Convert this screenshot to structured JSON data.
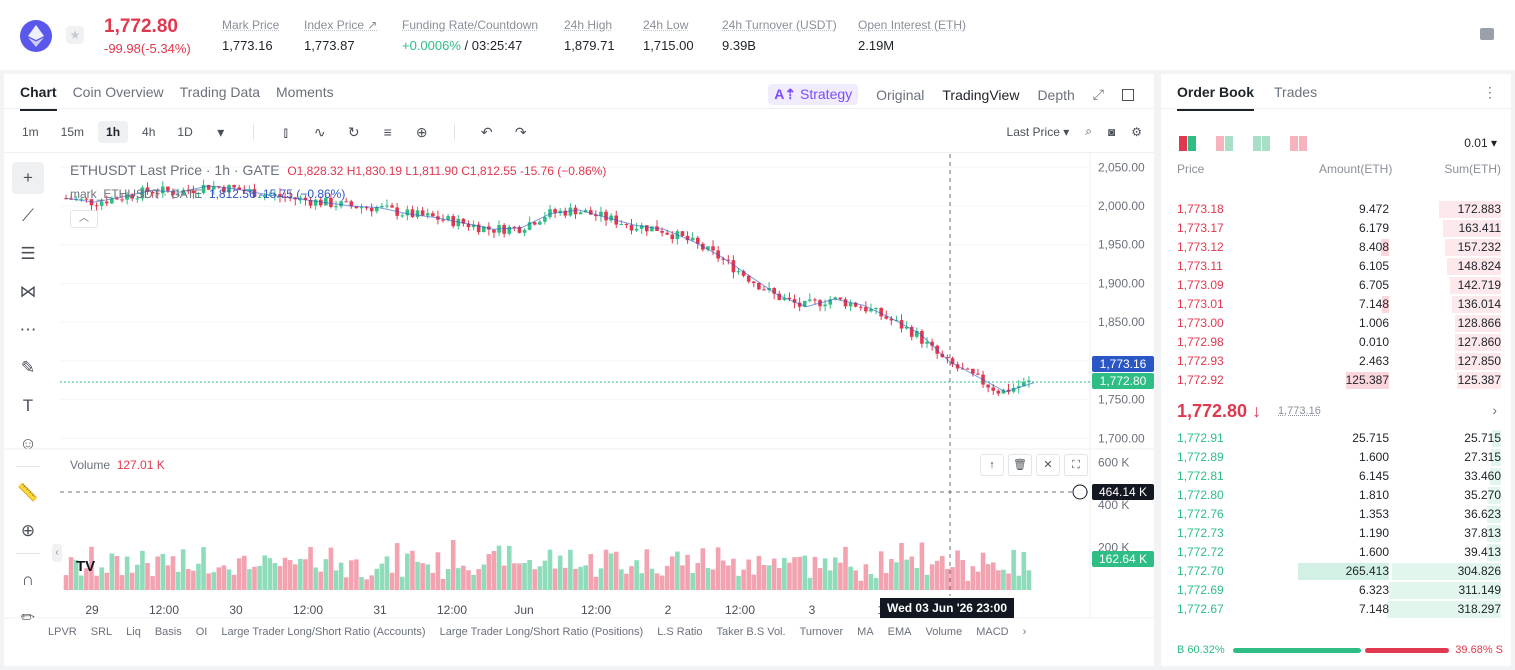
{
  "header": {
    "last_price": "1,772.80",
    "change": "-99.98(-5.34%)",
    "stats": [
      {
        "label": "Mark Price",
        "value": "1,773.16"
      },
      {
        "label": "Index Price ↗",
        "value": "1,773.87"
      },
      {
        "label": "Funding Rate/Countdown",
        "value_green": "+0.0006%",
        "value": " / 03:25:47"
      },
      {
        "label": "24h High",
        "value": "1,879.71"
      },
      {
        "label": "24h Low",
        "value": "1,715.00"
      },
      {
        "label": "24h Turnover (USDT)",
        "value": "9.39B"
      },
      {
        "label": "Open Interest (ETH)",
        "value": "2.19M"
      }
    ]
  },
  "chart_tabs": [
    "Chart",
    "Coin Overview",
    "Trading Data",
    "Moments"
  ],
  "view_tabs": {
    "strategy": "Strategy",
    "original": "Original",
    "tradingview": "TradingView",
    "depth": "Depth"
  },
  "timeframes": [
    "1m",
    "15m",
    "1h",
    "4h",
    "1D"
  ],
  "price_type": "Last Price",
  "legend": {
    "symbol": "ETHUSDT Last Price · 1h · GATE",
    "ohlc": "O1,828.32 H1,830.19 L1,811.90 C1,812.55 -15.76 (−0.86%)",
    "mark_label": "mark_ETHUSDT · GATE",
    "mark_value": "1,812.56 -15.75 (−0.86%)"
  },
  "volume_legend": {
    "label": "Volume",
    "value": "127.01 K"
  },
  "price_tags": {
    "mark": "1,773.16",
    "last": "1,772.80",
    "cursor_vol": "464.14 K",
    "vol_last": "162.64 K"
  },
  "crosshair_time": "Wed 03 Jun '26   23:00",
  "indicators": [
    "LPVR",
    "SRL",
    "Liq",
    "Basis",
    "OI",
    "Large Trader Long/Short Ratio (Accounts)",
    "Large Trader Long/Short Ratio (Positions)",
    "L.S Ratio",
    "Taker B.S Vol.",
    "Turnover",
    "MA",
    "EMA",
    "Volume",
    "MACD"
  ],
  "chart_data": {
    "type": "candlestick",
    "symbol": "ETHUSDT",
    "interval": "1h",
    "y_ticks": [
      "2,050.00",
      "2,000.00",
      "1,950.00",
      "1,900.00",
      "1,850.00",
      "1,800.00",
      "1,750.00",
      "1,700.00"
    ],
    "ylim": [
      1685,
      2062
    ],
    "vol_ticks": [
      "600 K",
      "400 K",
      "200 K"
    ],
    "vol_max": 640,
    "x_ticks": [
      "29",
      "12:00",
      "30",
      "12:00",
      "31",
      "12:00",
      "Jun",
      "12:00",
      "2",
      "12:00",
      "3",
      "12",
      "21:0"
    ],
    "close_trend": [
      2010,
      2005,
      2012,
      2020,
      2018,
      2026,
      2022,
      2015,
      2010,
      2005,
      2000,
      1998,
      1990,
      1985,
      1978,
      1970,
      1972,
      1990,
      1995,
      1985,
      1975,
      1970,
      1955,
      1935,
      1910,
      1885,
      1870,
      1880,
      1872,
      1855,
      1835,
      1800,
      1780,
      1760,
      1772
    ],
    "last_price": 1772.8
  },
  "orderbook": {
    "tabs": [
      "Order Book",
      "Trades"
    ],
    "step": "0.01 ▾",
    "headers": {
      "price": "Price",
      "amount": "Amount(ETH)",
      "sum": "Sum(ETH)"
    },
    "asks": [
      {
        "price": "1,773.18",
        "amount": "9.472",
        "sum": "172.883",
        "a": 0.0,
        "s": 0.54
      },
      {
        "price": "1,773.17",
        "amount": "6.179",
        "sum": "163.411",
        "a": 0.0,
        "s": 0.51
      },
      {
        "price": "1,773.12",
        "amount": "8.408",
        "sum": "157.232",
        "a": 0.07,
        "s": 0.49
      },
      {
        "price": "1,773.11",
        "amount": "6.105",
        "sum": "148.824",
        "a": 0.0,
        "s": 0.47
      },
      {
        "price": "1,773.09",
        "amount": "6.705",
        "sum": "142.719",
        "a": 0.0,
        "s": 0.45
      },
      {
        "price": "1,773.01",
        "amount": "7.148",
        "sum": "136.014",
        "a": 0.06,
        "s": 0.43
      },
      {
        "price": "1,773.00",
        "amount": "1.006",
        "sum": "128.866",
        "a": 0.0,
        "s": 0.4
      },
      {
        "price": "1,772.98",
        "amount": "0.010",
        "sum": "127.860",
        "a": 0.0,
        "s": 0.4
      },
      {
        "price": "1,772.93",
        "amount": "2.463",
        "sum": "127.850",
        "a": 0.0,
        "s": 0.4
      },
      {
        "price": "1,772.92",
        "amount": "125.387",
        "sum": "125.387",
        "a": 0.39,
        "s": 0.39
      }
    ],
    "mid": {
      "price": "1,772.80 ↓",
      "mark": "1,773.16"
    },
    "bids": [
      {
        "price": "1,772.91",
        "amount": "25.715",
        "sum": "25.715",
        "a": 0.0,
        "s": 0.08
      },
      {
        "price": "1,772.89",
        "amount": "1.600",
        "sum": "27.315",
        "a": 0.0,
        "s": 0.09
      },
      {
        "price": "1,772.81",
        "amount": "6.145",
        "sum": "33.460",
        "a": 0.0,
        "s": 0.1
      },
      {
        "price": "1,772.80",
        "amount": "1.810",
        "sum": "35.270",
        "a": 0.0,
        "s": 0.11
      },
      {
        "price": "1,772.76",
        "amount": "1.353",
        "sum": "36.623",
        "a": 0.0,
        "s": 0.12
      },
      {
        "price": "1,772.73",
        "amount": "1.190",
        "sum": "37.813",
        "a": 0.0,
        "s": 0.12
      },
      {
        "price": "1,772.72",
        "amount": "1.600",
        "sum": "39.413",
        "a": 0.0,
        "s": 0.12
      },
      {
        "price": "1,772.70",
        "amount": "265.413",
        "sum": "304.826",
        "a": 0.83,
        "s": 0.96
      },
      {
        "price": "1,772.69",
        "amount": "6.323",
        "sum": "311.149",
        "a": 0.0,
        "s": 0.98
      },
      {
        "price": "1,772.67",
        "amount": "7.148",
        "sum": "318.297",
        "a": 0.0,
        "s": 1.0
      }
    ],
    "ratio": {
      "buy_label": "B 60.32%",
      "sell_label": "39.68% S",
      "buy": 0.6032
    }
  },
  "colors": {
    "up": "#2ebd85",
    "down": "#e0384f",
    "accent": "#7b4bff"
  }
}
